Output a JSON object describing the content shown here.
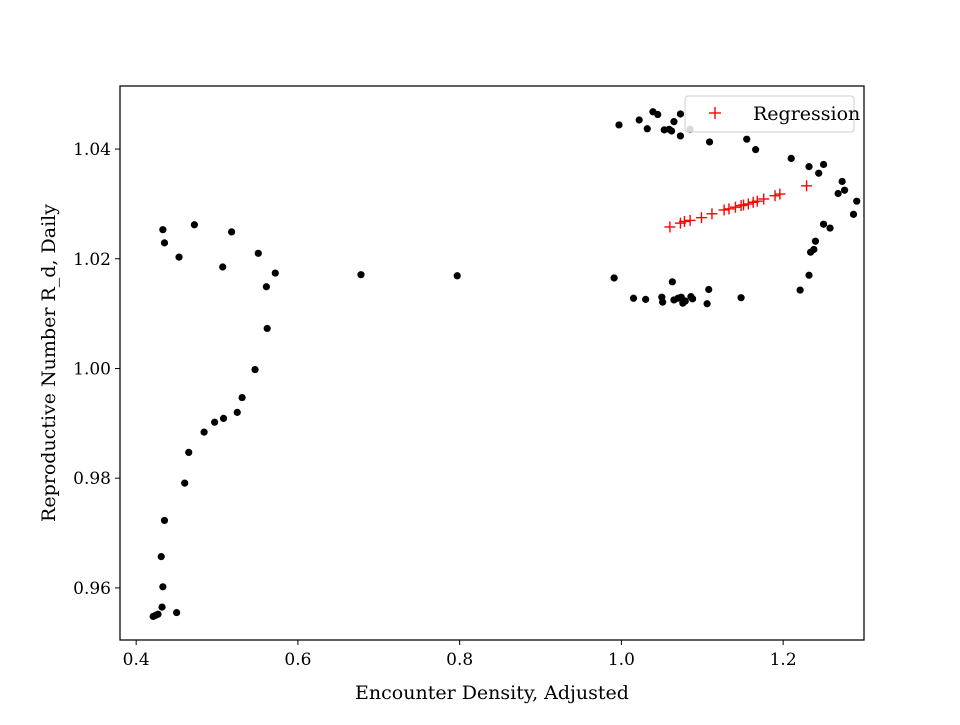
{
  "chart_data": {
    "type": "scatter",
    "title": "",
    "xlabel": "Encounter Density, Adjusted",
    "ylabel": "Reproductive Number R_d, Daily",
    "xlim": [
      0.38,
      1.3
    ],
    "ylim": [
      0.9505,
      1.0515
    ],
    "xticks": [
      0.4,
      0.6,
      0.8,
      1.0,
      1.2
    ],
    "xtick_labels": [
      "0.4",
      "0.6",
      "0.8",
      "1.0",
      "1.2"
    ],
    "yticks": [
      0.96,
      0.98,
      1.0,
      1.02,
      1.04
    ],
    "ytick_labels": [
      "0.96",
      "0.98",
      "1.00",
      "1.02",
      "1.04"
    ],
    "grid": false,
    "legend": {
      "position": "top-right",
      "entries": [
        "Regression"
      ]
    },
    "series": [
      {
        "name": "",
        "marker": "circle",
        "color": "#000000",
        "points": [
          [
            0.421,
            0.9548
          ],
          [
            0.424,
            0.955
          ],
          [
            0.427,
            0.9552
          ],
          [
            0.432,
            0.9565
          ],
          [
            0.433,
            0.9602
          ],
          [
            0.431,
            0.9657
          ],
          [
            0.435,
            0.9723
          ],
          [
            0.45,
            0.9555
          ],
          [
            0.46,
            0.9791
          ],
          [
            0.465,
            0.9847
          ],
          [
            0.484,
            0.9884
          ],
          [
            0.497,
            0.9902
          ],
          [
            0.508,
            0.9909
          ],
          [
            0.525,
            0.992
          ],
          [
            0.531,
            0.9947
          ],
          [
            0.547,
            0.9998
          ],
          [
            0.562,
            1.0073
          ],
          [
            0.561,
            1.0149
          ],
          [
            0.572,
            1.0174
          ],
          [
            0.551,
            1.021
          ],
          [
            0.507,
            1.0185
          ],
          [
            0.453,
            1.0203
          ],
          [
            0.435,
            1.0229
          ],
          [
            0.433,
            1.0253
          ],
          [
            0.472,
            1.0262
          ],
          [
            0.518,
            1.0249
          ],
          [
            0.678,
            1.0171
          ],
          [
            0.797,
            1.0169
          ],
          [
            0.991,
            1.0165
          ],
          [
            1.015,
            1.0128
          ],
          [
            1.03,
            1.0126
          ],
          [
            1.05,
            1.013
          ],
          [
            1.051,
            1.0121
          ],
          [
            1.065,
            1.0125
          ],
          [
            1.07,
            1.0128
          ],
          [
            1.074,
            1.013
          ],
          [
            1.076,
            1.0119
          ],
          [
            1.079,
            1.0123
          ],
          [
            1.086,
            1.0131
          ],
          [
            1.088,
            1.0127
          ],
          [
            1.063,
            1.0158
          ],
          [
            1.106,
            1.0118
          ],
          [
            1.108,
            1.0144
          ],
          [
            1.148,
            1.0129
          ],
          [
            1.221,
            1.0143
          ],
          [
            1.232,
            1.017
          ],
          [
            1.234,
            1.0212
          ],
          [
            1.238,
            1.0217
          ],
          [
            1.24,
            1.0232
          ],
          [
            1.25,
            1.0263
          ],
          [
            1.258,
            1.0256
          ],
          [
            1.268,
            1.0319
          ],
          [
            1.273,
            1.0341
          ],
          [
            1.276,
            1.0325
          ],
          [
            1.287,
            1.0281
          ],
          [
            1.291,
            1.0305
          ],
          [
            1.244,
            1.0356
          ],
          [
            1.25,
            1.0372
          ],
          [
            1.232,
            1.0368
          ],
          [
            1.21,
            1.0383
          ],
          [
            1.166,
            1.0399
          ],
          [
            1.155,
            1.0418
          ],
          [
            1.109,
            1.0413
          ],
          [
            1.073,
            1.0424
          ],
          [
            1.085,
            1.0436
          ],
          [
            1.062,
            1.0433
          ],
          [
            1.065,
            1.045
          ],
          [
            1.053,
            1.0435
          ],
          [
            1.045,
            1.0463
          ],
          [
            1.039,
            1.0468
          ],
          [
            1.032,
            1.0437
          ],
          [
            1.022,
            1.0453
          ],
          [
            0.997,
            1.0444
          ],
          [
            1.073,
            1.0464
          ],
          [
            1.059,
            1.0436
          ]
        ]
      },
      {
        "name": "Regression",
        "marker": "plus",
        "color": "#ff0000",
        "points": [
          [
            1.06,
            1.0258
          ],
          [
            1.073,
            1.0265
          ],
          [
            1.078,
            1.0268
          ],
          [
            1.085,
            1.027
          ],
          [
            1.099,
            1.0275
          ],
          [
            1.112,
            1.0282
          ],
          [
            1.127,
            1.0289
          ],
          [
            1.133,
            1.0291
          ],
          [
            1.141,
            1.0294
          ],
          [
            1.148,
            1.0297
          ],
          [
            1.151,
            1.0298
          ],
          [
            1.157,
            1.03
          ],
          [
            1.163,
            1.0303
          ],
          [
            1.168,
            1.0305
          ],
          [
            1.176,
            1.0309
          ],
          [
            1.19,
            1.0315
          ],
          [
            1.196,
            1.0318
          ],
          [
            1.229,
            1.0333
          ]
        ]
      }
    ]
  }
}
